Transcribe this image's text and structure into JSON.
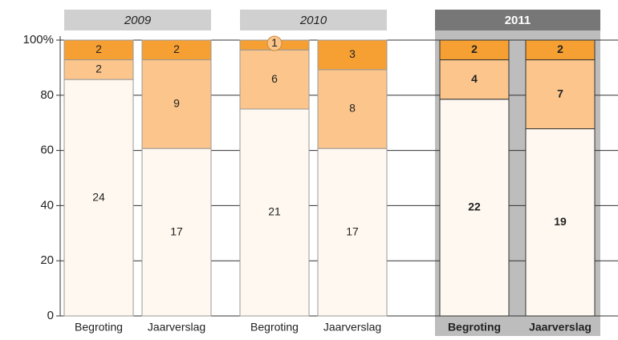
{
  "chart_data": {
    "type": "bar",
    "stacked": "percent",
    "groups": [
      "2009",
      "2010",
      "2011"
    ],
    "highlight_group": 2,
    "categories": [
      "Begroting",
      "Jaarverslag",
      "Begroting",
      "Jaarverslag",
      "Begroting",
      "Jaarverslag"
    ],
    "series": [
      {
        "color": "#fff8f0",
        "values": [
          24,
          17,
          21,
          17,
          22,
          19
        ]
      },
      {
        "color": "#fcc58c",
        "values": [
          2,
          9,
          6,
          8,
          4,
          7
        ]
      },
      {
        "color": "#f6a033",
        "values": [
          2,
          2,
          1,
          3,
          2,
          2
        ]
      }
    ],
    "ylim": [
      0,
      100
    ],
    "yticks": [
      0,
      20,
      40,
      60,
      80,
      {
        "value": 100,
        "label": "100%"
      }
    ],
    "grid": true
  }
}
